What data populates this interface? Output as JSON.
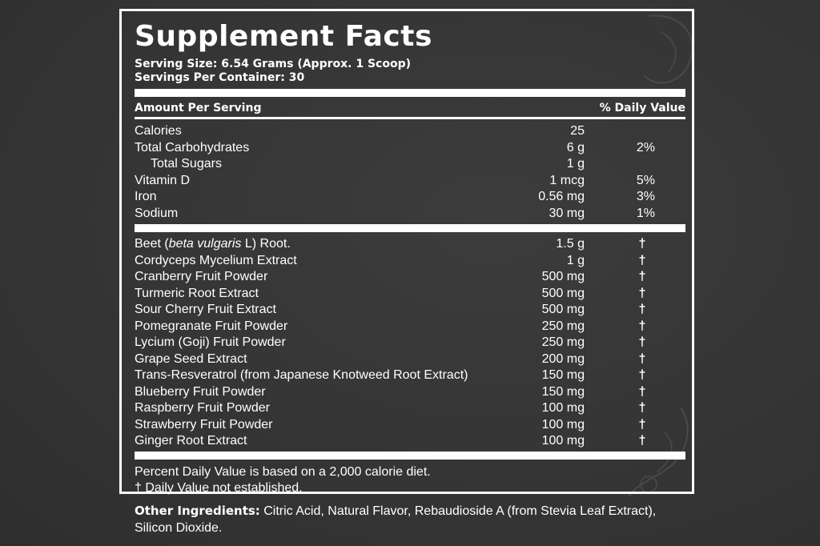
{
  "colors": {
    "background": "#373737",
    "text": "#ffffff",
    "rules": "#ffffff"
  },
  "facts": {
    "title": "Supplement Facts",
    "serving_size": "Serving Size: 6.54 Grams (Approx. 1 Scoop)",
    "servings_per_container": "Servings Per Container: 30",
    "amount_header": "Amount Per Serving",
    "dv_header": "% Daily Value",
    "nutrients": [
      {
        "name": "Calories",
        "amount": "25",
        "dv": ""
      },
      {
        "name": "Total Carbohydrates",
        "amount": "6 g",
        "dv": "2%"
      },
      {
        "name": "Total Sugars",
        "amount": "1 g",
        "dv": ""
      },
      {
        "name": "Vitamin D",
        "amount": "1 mcg",
        "dv": "5%"
      },
      {
        "name": "Iron",
        "amount": "0.56 mg",
        "dv": "3%"
      },
      {
        "name": "Sodium",
        "amount": "30 mg",
        "dv": "1%"
      }
    ],
    "blend": [
      {
        "name_prefix": "Beet (",
        "name_italic": "beta vulgaris",
        "name_suffix": " L) Root.",
        "amount": "1.5 g",
        "dv": "†"
      },
      {
        "name": "Cordyceps Mycelium Extract",
        "amount": "1 g",
        "dv": "†"
      },
      {
        "name": "Cranberry Fruit Powder",
        "amount": "500 mg",
        "dv": "†"
      },
      {
        "name": "Turmeric Root Extract",
        "amount": "500 mg",
        "dv": "†"
      },
      {
        "name": "Sour Cherry Fruit Extract",
        "amount": "500 mg",
        "dv": "†"
      },
      {
        "name": "Pomegranate Fruit Powder",
        "amount": "250 mg",
        "dv": "†"
      },
      {
        "name": "Lycium (Goji) Fruit Powder",
        "amount": "250 mg",
        "dv": "†"
      },
      {
        "name": "Grape Seed Extract",
        "amount": "200 mg",
        "dv": "†"
      },
      {
        "name": "Trans-Resveratrol (from Japanese Knotweed Root Extract)",
        "amount": "150 mg",
        "dv": "†"
      },
      {
        "name": "Blueberry Fruit Powder",
        "amount": "150 mg",
        "dv": "†"
      },
      {
        "name": "Raspberry Fruit Powder",
        "amount": "100 mg",
        "dv": "†"
      },
      {
        "name": "Strawberry Fruit Powder",
        "amount": "100 mg",
        "dv": "†"
      },
      {
        "name": "Ginger Root Extract",
        "amount": "100 mg",
        "dv": "†"
      }
    ],
    "footnote_1": "Percent Daily Value is based on a 2,000 calorie diet.",
    "footnote_2": "† Daily Value not established."
  },
  "other_ingredients": {
    "label": "Other Ingredients:",
    "text": " Citric Acid, Natural Flavor, Rebaudioside A (from Stevia Leaf Extract), Silicon Dioxide."
  },
  "decorations": {
    "top_right_icon": "leaf-outline-icon",
    "bottom_right_icon": "ginger-root-outline-icon"
  }
}
